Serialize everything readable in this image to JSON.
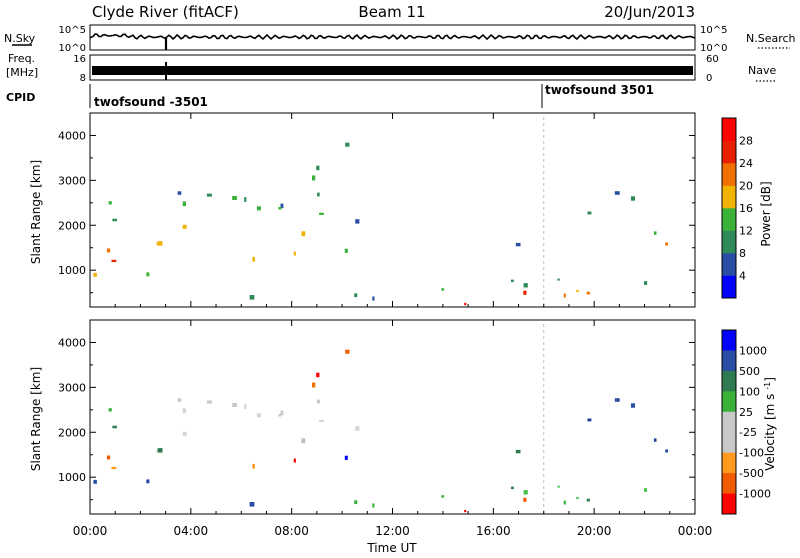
{
  "header": {
    "station": "Clyde River (fitACF)",
    "beam": "Beam 11",
    "date": "20/Jun/2013"
  },
  "sky_panel": {
    "left_label": "N.Sky",
    "right_label": "N.Search",
    "tick_top": "10^5",
    "tick_bottom": "10^0",
    "tick_top_right": "10^5",
    "tick_bottom_right": "10^0"
  },
  "freq_panel": {
    "left_label_1": "Freq.",
    "left_label_2": "[MHz]",
    "right_label": "Nave",
    "tick_top": "16",
    "tick_bottom": "8",
    "tick_top_right": "60",
    "tick_bottom_right": "0"
  },
  "cpid_panel": {
    "label": "CPID",
    "program_1": "twofsound -3501",
    "program_2": "twofsound 3501"
  },
  "colors": {
    "power": [
      "#0000ff",
      "#2a4ea6",
      "#2f8a57",
      "#3ab23a",
      "#f0b400",
      "#f07000",
      "#e82000",
      "#ff0000"
    ],
    "velocity": [
      "#ff0000",
      "#f05a00",
      "#ff9a1f",
      "#c8c8c8",
      "#c8c8c8",
      "#3ab23a",
      "#2f7a50",
      "#2a4ea6",
      "#0000ff"
    ]
  },
  "chart_data": [
    {
      "type": "heatmap",
      "ylabel": "Slant Range [km]",
      "ylim": [
        180,
        4500
      ],
      "yticks": [
        "1000",
        "2000",
        "3000",
        "4000"
      ],
      "colorbar_label": "Power [dB]",
      "colorbar_ticks": [
        "4",
        "8",
        "12",
        "16",
        "20",
        "24",
        "28"
      ],
      "scale_range": [
        0,
        32
      ]
    },
    {
      "type": "heatmap",
      "ylabel": "Slant Range [km]",
      "ylim": [
        180,
        4500
      ],
      "yticks": [
        "1000",
        "2000",
        "3000",
        "4000"
      ],
      "colorbar_label": "Velocity [m s^-1]",
      "colorbar_ticks": [
        "1000",
        "500",
        "100",
        "25",
        "-25",
        "-100",
        "-500",
        "-1000"
      ],
      "xlabel": "Time UT",
      "xticks": [
        "00:00",
        "04:00",
        "08:00",
        "12:00",
        "16:00",
        "20:00",
        "00:00"
      ],
      "xlim_hours": [
        0,
        24
      ]
    }
  ]
}
